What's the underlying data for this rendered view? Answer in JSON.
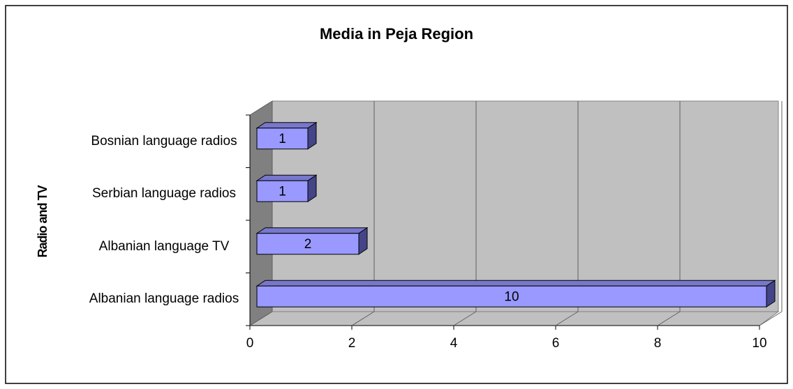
{
  "chart_data": {
    "type": "bar",
    "title": "Media in Peja Region",
    "y_axis_label": "Radio and TV",
    "categories": [
      "Albanian language radios",
      "Albanian language TV",
      "Serbian language radios",
      "Bosnian language radios"
    ],
    "values": [
      10,
      2,
      1,
      1
    ],
    "color": "#9999ff",
    "xlim": [
      0,
      10
    ],
    "xticks": [
      0,
      2,
      4,
      6,
      8,
      10
    ],
    "grid": true
  }
}
